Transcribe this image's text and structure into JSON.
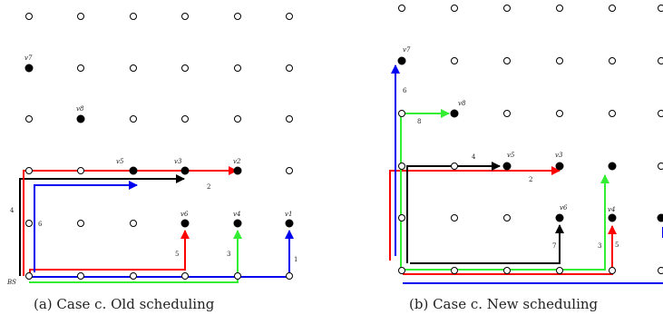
{
  "figure": {
    "panel_a": {
      "caption": "(a) Case c. Old scheduling",
      "base_station_label": "BS",
      "node_labels": [
        "v7",
        "v8",
        "v5",
        "v3",
        "v2",
        "v6",
        "v4",
        "v1"
      ],
      "hop_labels": [
        "1",
        "2",
        "3",
        "4",
        "5",
        "6"
      ]
    },
    "panel_b": {
      "caption": "(b) Case c. New scheduling",
      "node_labels": [
        "v7",
        "v8",
        "v5",
        "v3",
        "v6",
        "v4"
      ],
      "hop_labels": [
        "2",
        "3",
        "4",
        "5",
        "6",
        "7",
        "8"
      ]
    },
    "colors": {
      "red": "#ff0000",
      "green": "#33ee33",
      "blue": "#0000ee",
      "black": "#000000"
    }
  }
}
